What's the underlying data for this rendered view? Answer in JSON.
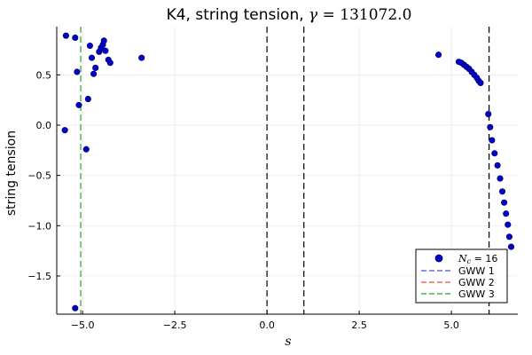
{
  "chart_data": {
    "type": "scatter",
    "title": {
      "prefix": "K4, string tension, ",
      "gamma_symbol": "γ",
      "equals": " = ",
      "gamma_value": "131072.0"
    },
    "xlabel": "s",
    "ylabel": "string tension",
    "xlim": [
      -5.7,
      6.8
    ],
    "ylim": [
      -1.88,
      0.98
    ],
    "xticks": [
      {
        "value": -5.0,
        "label": "−5.0"
      },
      {
        "value": -2.5,
        "label": "−2.5"
      },
      {
        "value": 0.0,
        "label": "0.0"
      },
      {
        "value": 2.5,
        "label": "2.5"
      },
      {
        "value": 5.0,
        "label": "5.0"
      }
    ],
    "yticks": [
      {
        "value": 0.5,
        "label": "0.5"
      },
      {
        "value": 0.0,
        "label": "0.0"
      },
      {
        "value": -0.5,
        "label": "−0.5"
      },
      {
        "value": -1.0,
        "label": "−1.0"
      },
      {
        "value": -1.5,
        "label": "−1.5"
      }
    ],
    "grid": true,
    "legend_position": "bottom-right",
    "series": [
      {
        "name_var": "N",
        "name_sub": "c",
        "name_rest": " = 16",
        "color": "#0000cc",
        "edge_color": "#000066",
        "points": [
          {
            "x": -5.45,
            "y": 0.89
          },
          {
            "x": -5.2,
            "y": 0.87
          },
          {
            "x": -5.15,
            "y": 0.53
          },
          {
            "x": -5.1,
            "y": 0.2
          },
          {
            "x": -5.48,
            "y": -0.05
          },
          {
            "x": -4.9,
            "y": -0.24
          },
          {
            "x": -4.85,
            "y": 0.26
          },
          {
            "x": -4.8,
            "y": 0.79
          },
          {
            "x": -4.75,
            "y": 0.67
          },
          {
            "x": -4.7,
            "y": 0.51
          },
          {
            "x": -4.65,
            "y": 0.57
          },
          {
            "x": -4.55,
            "y": 0.73
          },
          {
            "x": -4.5,
            "y": 0.77
          },
          {
            "x": -4.45,
            "y": 0.8
          },
          {
            "x": -4.42,
            "y": 0.84
          },
          {
            "x": -4.38,
            "y": 0.74
          },
          {
            "x": -4.3,
            "y": 0.65
          },
          {
            "x": -4.25,
            "y": 0.62
          },
          {
            "x": -3.4,
            "y": 0.67
          },
          {
            "x": -5.2,
            "y": -1.82
          },
          {
            "x": 4.65,
            "y": 0.7
          },
          {
            "x": 5.2,
            "y": 0.63
          },
          {
            "x": 5.27,
            "y": 0.62
          },
          {
            "x": 5.34,
            "y": 0.6
          },
          {
            "x": 5.41,
            "y": 0.58
          },
          {
            "x": 5.48,
            "y": 0.56
          },
          {
            "x": 5.55,
            "y": 0.53
          },
          {
            "x": 5.62,
            "y": 0.5
          },
          {
            "x": 5.69,
            "y": 0.47
          },
          {
            "x": 5.74,
            "y": 0.44
          },
          {
            "x": 5.79,
            "y": 0.42
          },
          {
            "x": 6.0,
            "y": 0.11
          },
          {
            "x": 6.05,
            "y": -0.02
          },
          {
            "x": 6.1,
            "y": -0.15
          },
          {
            "x": 6.17,
            "y": -0.28
          },
          {
            "x": 6.25,
            "y": -0.4
          },
          {
            "x": 6.32,
            "y": -0.53
          },
          {
            "x": 6.38,
            "y": -0.66
          },
          {
            "x": 6.43,
            "y": -0.77
          },
          {
            "x": 6.48,
            "y": -0.88
          },
          {
            "x": 6.53,
            "y": -0.99
          },
          {
            "x": 6.57,
            "y": -1.11
          },
          {
            "x": 6.62,
            "y": -1.21
          }
        ]
      }
    ],
    "vlines": [
      {
        "x": 0.0,
        "color": "#000000"
      },
      {
        "x": 1.0,
        "color": "#000000"
      },
      {
        "x": -5.05,
        "color": "#2ca02c"
      },
      {
        "x": 6.02,
        "color": "#2ca02c"
      },
      {
        "x": 6.02,
        "color": "#000000"
      }
    ],
    "legend": [
      {
        "label": "GWW 1",
        "color": "#6a6aee"
      },
      {
        "label": "GWW 2",
        "color": "#ee6a6a"
      },
      {
        "label": "GWW 3",
        "color": "#4caf4c"
      }
    ]
  }
}
